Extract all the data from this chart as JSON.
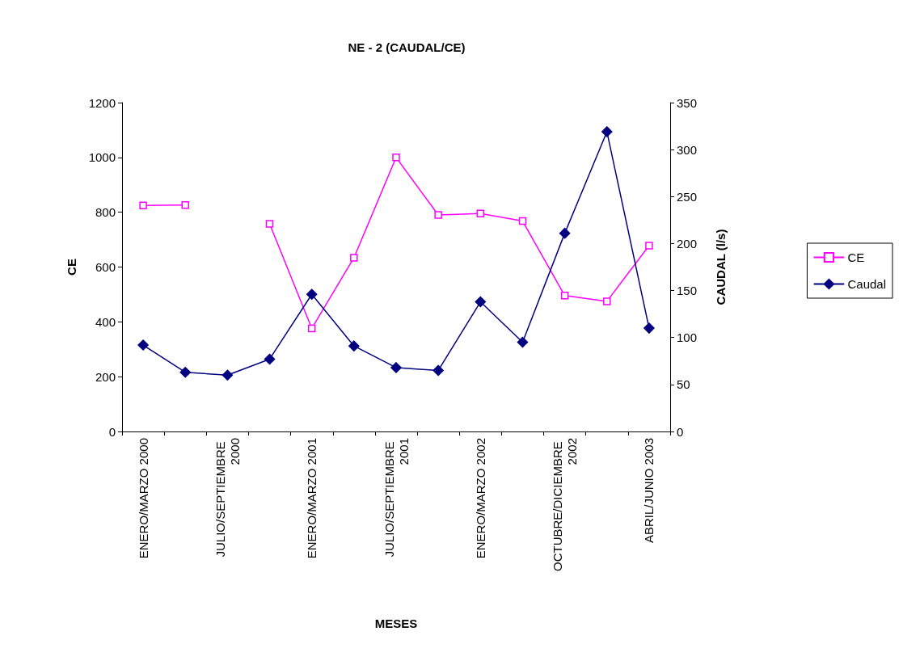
{
  "chart_data": {
    "type": "line",
    "title": "NE - 2 (CAUDAL/CE)",
    "xlabel": "MESES",
    "ylabel": "CE",
    "y2label": "CAUDAL (l/s)",
    "categories": [
      "ENERO/MARZO 2000",
      null,
      "JULIO/SEPTIEMBRE 2000",
      null,
      "ENERO/MARZO 2001",
      null,
      "JULIO/SEPTIEMBRE 2001",
      null,
      "ENERO/MARZO 2002",
      null,
      "OCTUBRE/DICIEMBRE 2002",
      null,
      "ABRIL/JUNIO 2003"
    ],
    "series": [
      {
        "name": "CE",
        "color": "#ff00ff",
        "marker": "square",
        "values": [
          825,
          826,
          null,
          758,
          376,
          634,
          1000,
          790,
          795,
          768,
          496,
          475,
          678
        ]
      },
      {
        "name": "Caudal",
        "color": "#000080",
        "marker": "diamond",
        "axis": "y2",
        "values": [
          92,
          63,
          60,
          77,
          146,
          91,
          68,
          65,
          138,
          95,
          211,
          319,
          110
        ]
      }
    ],
    "ylim": [
      0,
      1200
    ],
    "yticks": [
      0,
      200,
      400,
      600,
      800,
      1000,
      1200
    ],
    "y2lim": [
      0,
      350
    ],
    "y2ticks": [
      0,
      50,
      100,
      150,
      200,
      250,
      300,
      350
    ],
    "grid": false,
    "legend": "right",
    "line_style": "solid"
  }
}
